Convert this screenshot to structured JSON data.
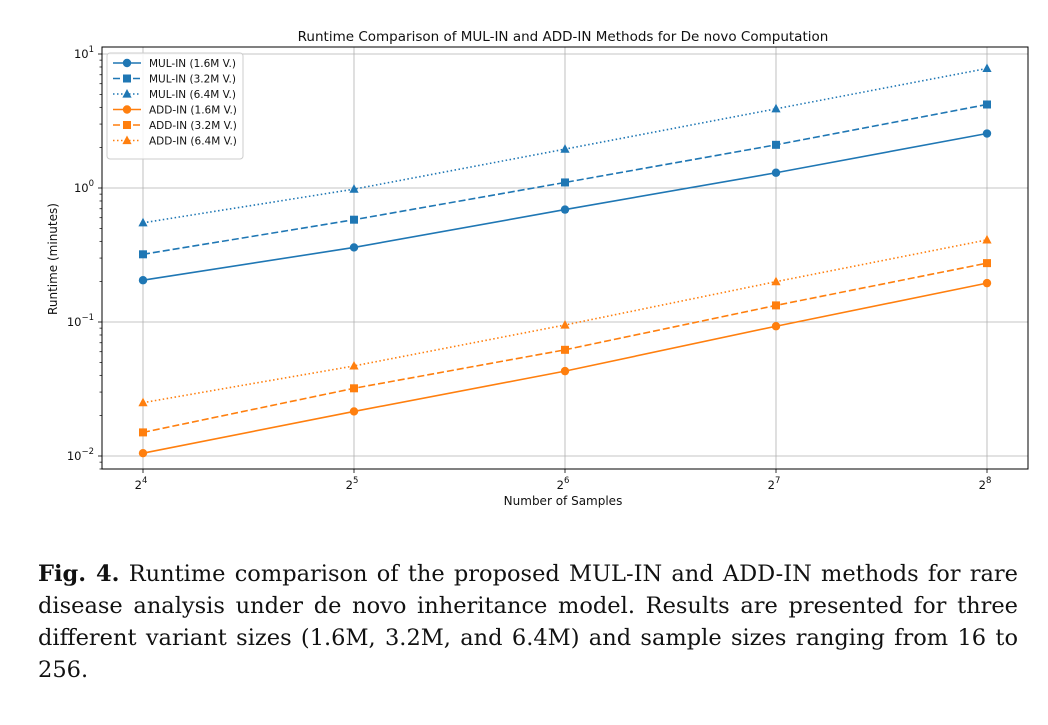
{
  "chart_data": {
    "type": "line",
    "title": "Runtime Comparison of MUL-IN and ADD-IN Methods for De novo Computation",
    "xlabel": "Number of Samples",
    "ylabel": "Runtime (minutes)",
    "x_scale": "log2",
    "y_scale": "log10",
    "x": [
      16,
      32,
      64,
      128,
      256
    ],
    "x_ticks": [
      {
        "base": "2",
        "exp": "4"
      },
      {
        "base": "2",
        "exp": "5"
      },
      {
        "base": "2",
        "exp": "6"
      },
      {
        "base": "2",
        "exp": "7"
      },
      {
        "base": "2",
        "exp": "8"
      }
    ],
    "y_ticks": [
      {
        "base": "10",
        "exp": "1"
      },
      {
        "base": "10",
        "exp": "0"
      },
      {
        "base": "10",
        "exp": "−1"
      },
      {
        "base": "10",
        "exp": "−2"
      }
    ],
    "ylim": [
      0.0082,
      12
    ],
    "grid": true,
    "legend_position": "top-left",
    "series": [
      {
        "name": "MUL-IN (1.6M V.)",
        "color": "#1f77b4",
        "linestyle": "solid",
        "marker": "circle",
        "values": [
          0.205,
          0.36,
          0.69,
          1.3,
          2.55
        ]
      },
      {
        "name": "MUL-IN (3.2M V.)",
        "color": "#1f77b4",
        "linestyle": "dashed",
        "marker": "square",
        "values": [
          0.32,
          0.58,
          1.1,
          2.1,
          4.2
        ]
      },
      {
        "name": "MUL-IN (6.4M V.)",
        "color": "#1f77b4",
        "linestyle": "dotted",
        "marker": "triangle",
        "values": [
          0.55,
          0.98,
          1.95,
          3.9,
          7.8
        ]
      },
      {
        "name": "ADD-IN (1.6M V.)",
        "color": "#ff7f0e",
        "linestyle": "solid",
        "marker": "circle",
        "values": [
          0.0105,
          0.0215,
          0.043,
          0.093,
          0.195
        ]
      },
      {
        "name": "ADD-IN (3.2M V.)",
        "color": "#ff7f0e",
        "linestyle": "dashed",
        "marker": "square",
        "values": [
          0.015,
          0.032,
          0.062,
          0.133,
          0.275
        ]
      },
      {
        "name": "ADD-IN (6.4M V.)",
        "color": "#ff7f0e",
        "linestyle": "dotted",
        "marker": "triangle",
        "values": [
          0.025,
          0.047,
          0.095,
          0.2,
          0.41
        ]
      }
    ]
  },
  "caption": {
    "label": "Fig. 4.",
    "text": "Runtime comparison of the proposed MUL-IN and ADD-IN methods for rare disease analysis under de novo inheritance model. Results are presented for three different variant sizes (1.6M, 3.2M, and 6.4M) and sample sizes ranging from 16 to 256."
  }
}
